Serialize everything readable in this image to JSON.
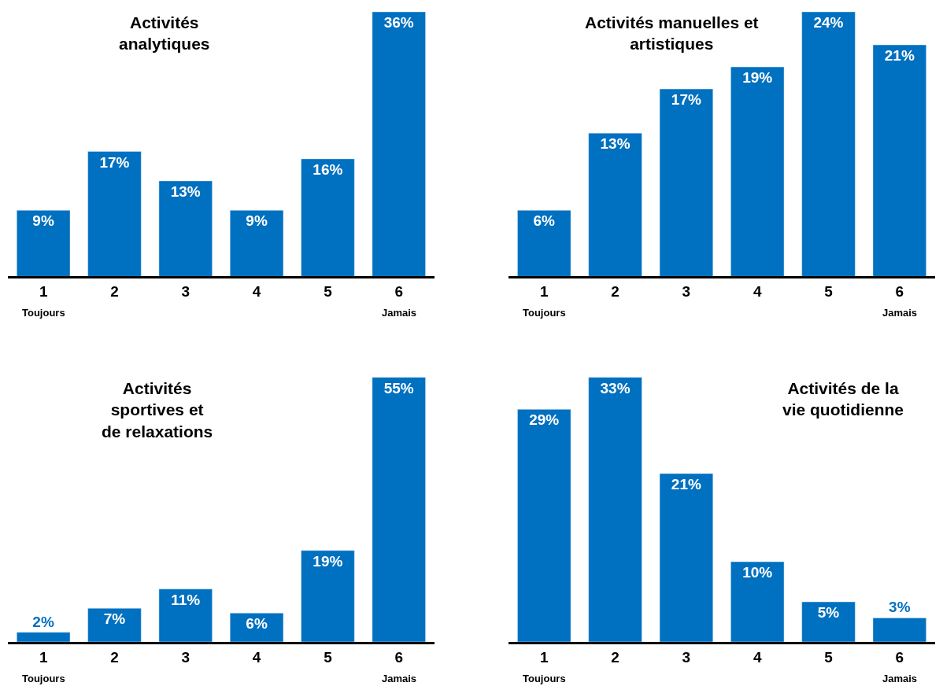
{
  "chart_data": [
    {
      "type": "bar",
      "title": "Activités analytiques",
      "categories": [
        "1",
        "2",
        "3",
        "4",
        "5",
        "6"
      ],
      "values": [
        9,
        17,
        13,
        9,
        16,
        36
      ],
      "value_labels": [
        "9%",
        "17%",
        "13%",
        "9%",
        "16%",
        "36%"
      ],
      "color": "#0070c0",
      "tick_labels": "x",
      "annotations": [
        "Toujours",
        "Jamais"
      ]
    },
    {
      "type": "bar",
      "title": "Activités manuelles et artistiques",
      "categories": [
        "1",
        "2",
        "3",
        "4",
        "5",
        "6"
      ],
      "values": [
        6,
        13,
        17,
        19,
        24,
        21
      ],
      "value_labels": [
        "6%",
        "13%",
        "17%",
        "19%",
        "24%",
        "21%"
      ],
      "color": "#0070c0",
      "tick_labels": "x",
      "annotations": [
        "Toujours",
        "Jamais"
      ]
    },
    {
      "type": "bar",
      "title": "Activités sportives et de relaxations",
      "categories": [
        "1",
        "2",
        "3",
        "4",
        "5",
        "6"
      ],
      "values": [
        2,
        7,
        11,
        6,
        19,
        55
      ],
      "value_labels": [
        "2%",
        "7%",
        "11%",
        "6%",
        "19%",
        "55%"
      ],
      "color": "#0070c0",
      "tick_labels": "x",
      "annotations": [
        "Toujours",
        "Jamais"
      ]
    },
    {
      "type": "bar",
      "title": "Activités de la vie quotidienne",
      "categories": [
        "1",
        "2",
        "3",
        "4",
        "5",
        "6"
      ],
      "values": [
        29,
        33,
        21,
        10,
        5,
        3
      ],
      "value_labels": [
        "29%",
        "33%",
        "21%",
        "10%",
        "5%",
        "3%"
      ],
      "color": "#0070c0",
      "tick_labels": "x",
      "annotations": [
        "Toujours",
        "Jamais"
      ]
    }
  ]
}
